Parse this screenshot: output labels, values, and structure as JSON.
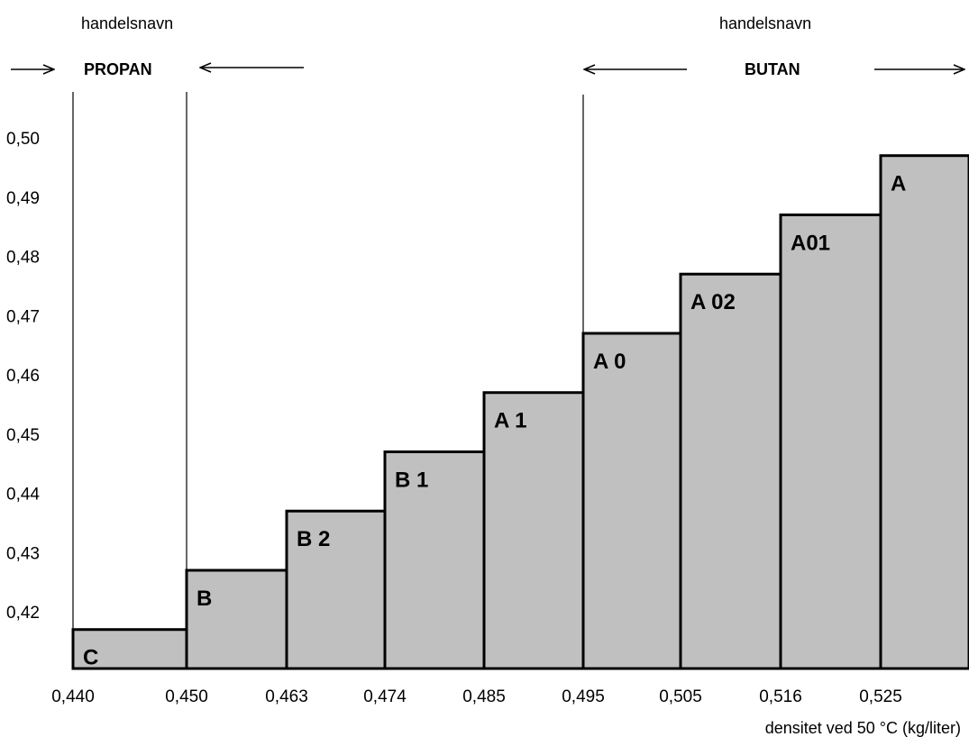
{
  "chart_data": {
    "type": "bar",
    "variant": "step",
    "group_labels": [
      {
        "label": "handelsnavn",
        "name": "PROPAN"
      },
      {
        "label": "handelsnavn",
        "name": "BUTAN"
      }
    ],
    "x_ticks": [
      "0,440",
      "0,450",
      "0,463",
      "0,474",
      "0,485",
      "0,495",
      "0,505",
      "0,516",
      "0,525"
    ],
    "y_ticks": [
      "0,50",
      "0,49",
      "0,48",
      "0,47",
      "0,46",
      "0,45",
      "0,44",
      "0,43",
      "0,42"
    ],
    "xlabel": "densitet ved 50 °C (kg/liter)",
    "ylabel": "",
    "ylim": [
      0.41,
      0.505
    ],
    "categories": [
      "C",
      "B",
      "B 2",
      "B 1",
      "A 1",
      "A 0",
      "A 02",
      "A01",
      "A"
    ],
    "values": [
      0.417,
      0.427,
      0.437,
      0.447,
      0.457,
      0.467,
      0.477,
      0.487,
      0.497
    ],
    "bar_fill": "#c0c0c0",
    "bar_stroke": "#000000",
    "grid": false
  }
}
